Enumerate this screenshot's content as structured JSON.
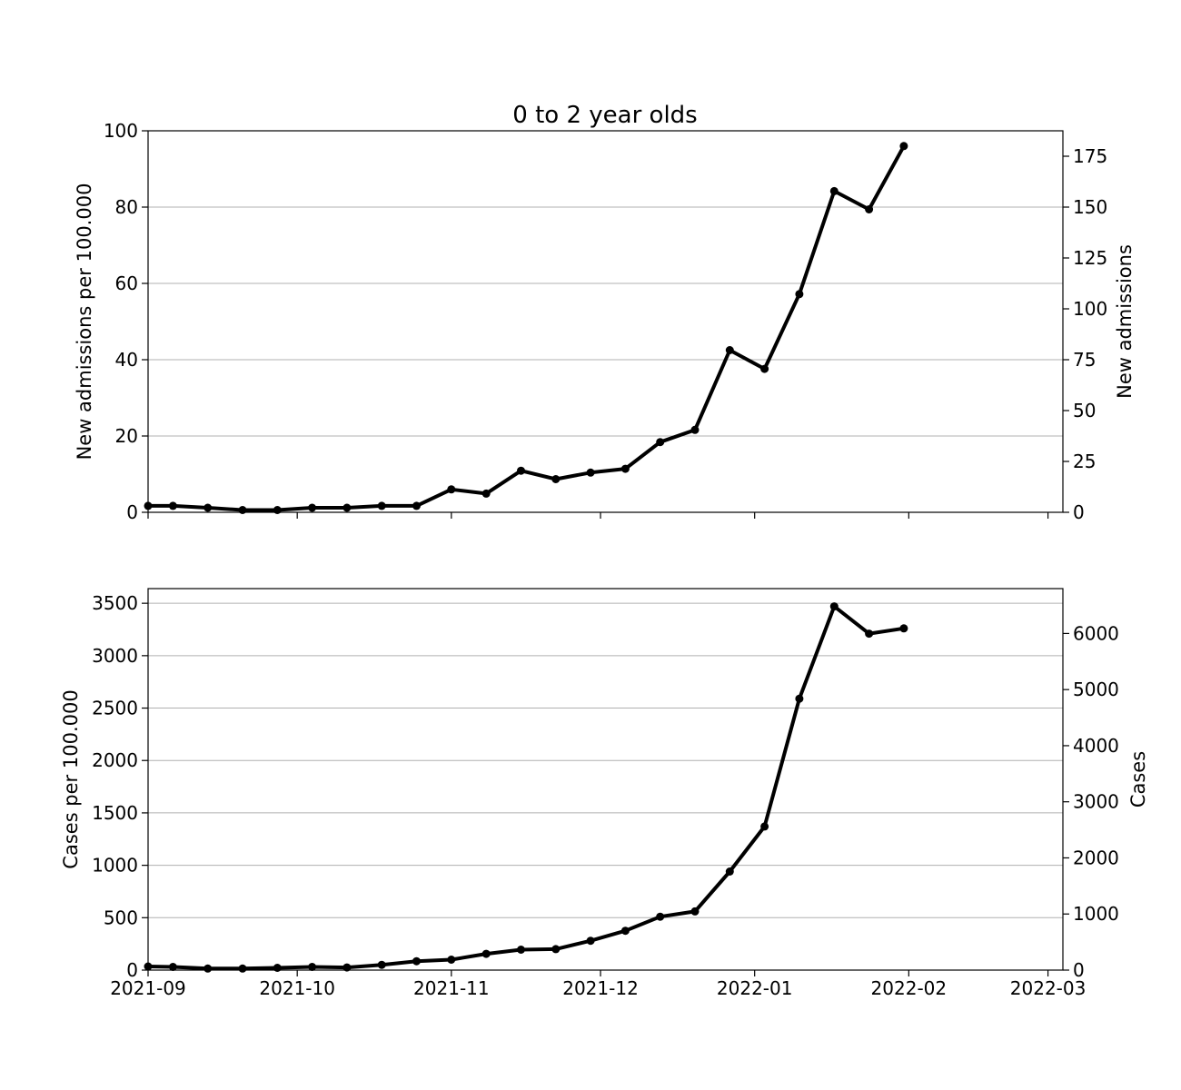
{
  "chart_data": [
    {
      "type": "line",
      "title": "0 to 2 year olds",
      "ylabel": "New admissions per 100.000",
      "ylabel_right": "New admissions",
      "ylim": [
        0,
        100
      ],
      "ylim_right": [
        0,
        187.5
      ],
      "yticks": [
        0,
        20,
        40,
        60,
        80,
        100
      ],
      "yticks_right": [
        0,
        25,
        50,
        75,
        100,
        125,
        150,
        175
      ],
      "grid": true,
      "x_range": [
        "2021-09-01",
        "2022-03-04"
      ],
      "xticks": [
        "2021-09",
        "2021-10",
        "2021-11",
        "2021-12",
        "2022-01",
        "2022-02",
        "2022-03"
      ],
      "show_xtick_labels": false,
      "series": [
        {
          "color": "#000000",
          "x": [
            "2021-09-01",
            "2021-09-06",
            "2021-09-13",
            "2021-09-20",
            "2021-09-27",
            "2021-10-04",
            "2021-10-11",
            "2021-10-18",
            "2021-10-25",
            "2021-11-01",
            "2021-11-08",
            "2021-11-15",
            "2021-11-22",
            "2021-11-29",
            "2021-12-06",
            "2021-12-13",
            "2021-12-20",
            "2021-12-27",
            "2022-01-03",
            "2022-01-10",
            "2022-01-17",
            "2022-01-24",
            "2022-01-31"
          ],
          "values": [
            1.7,
            1.7,
            1.2,
            0.6,
            0.6,
            1.2,
            1.2,
            1.7,
            1.7,
            6.0,
            4.9,
            10.9,
            8.7,
            10.4,
            11.4,
            18.4,
            21.6,
            42.5,
            37.6,
            57.2,
            84.2,
            79.4,
            96.0
          ]
        }
      ]
    },
    {
      "type": "line",
      "ylabel": "Cases per 100.000",
      "ylabel_right": "Cases",
      "ylim": [
        0,
        3640
      ],
      "ylim_right": [
        0,
        6800
      ],
      "yticks": [
        0,
        500,
        1000,
        1500,
        2000,
        2500,
        3000,
        3500
      ],
      "yticks_right": [
        0,
        1000,
        2000,
        3000,
        4000,
        5000,
        6000
      ],
      "grid": true,
      "x_range": [
        "2021-09-01",
        "2022-03-04"
      ],
      "xticks": [
        "2021-09",
        "2021-10",
        "2021-11",
        "2021-12",
        "2022-01",
        "2022-02",
        "2022-03"
      ],
      "show_xtick_labels": true,
      "series": [
        {
          "color": "#000000",
          "x": [
            "2021-09-01",
            "2021-09-06",
            "2021-09-13",
            "2021-09-20",
            "2021-09-27",
            "2021-10-04",
            "2021-10-11",
            "2021-10-18",
            "2021-10-25",
            "2021-11-01",
            "2021-11-08",
            "2021-11-15",
            "2021-11-22",
            "2021-11-29",
            "2021-12-06",
            "2021-12-13",
            "2021-12-20",
            "2021-12-27",
            "2022-01-03",
            "2022-01-10",
            "2022-01-17",
            "2022-01-24",
            "2022-01-31"
          ],
          "values": [
            35,
            30,
            15,
            15,
            22,
            30,
            25,
            50,
            85,
            100,
            155,
            195,
            200,
            280,
            375,
            510,
            560,
            940,
            1370,
            2590,
            3470,
            3210,
            3260
          ]
        }
      ]
    }
  ]
}
